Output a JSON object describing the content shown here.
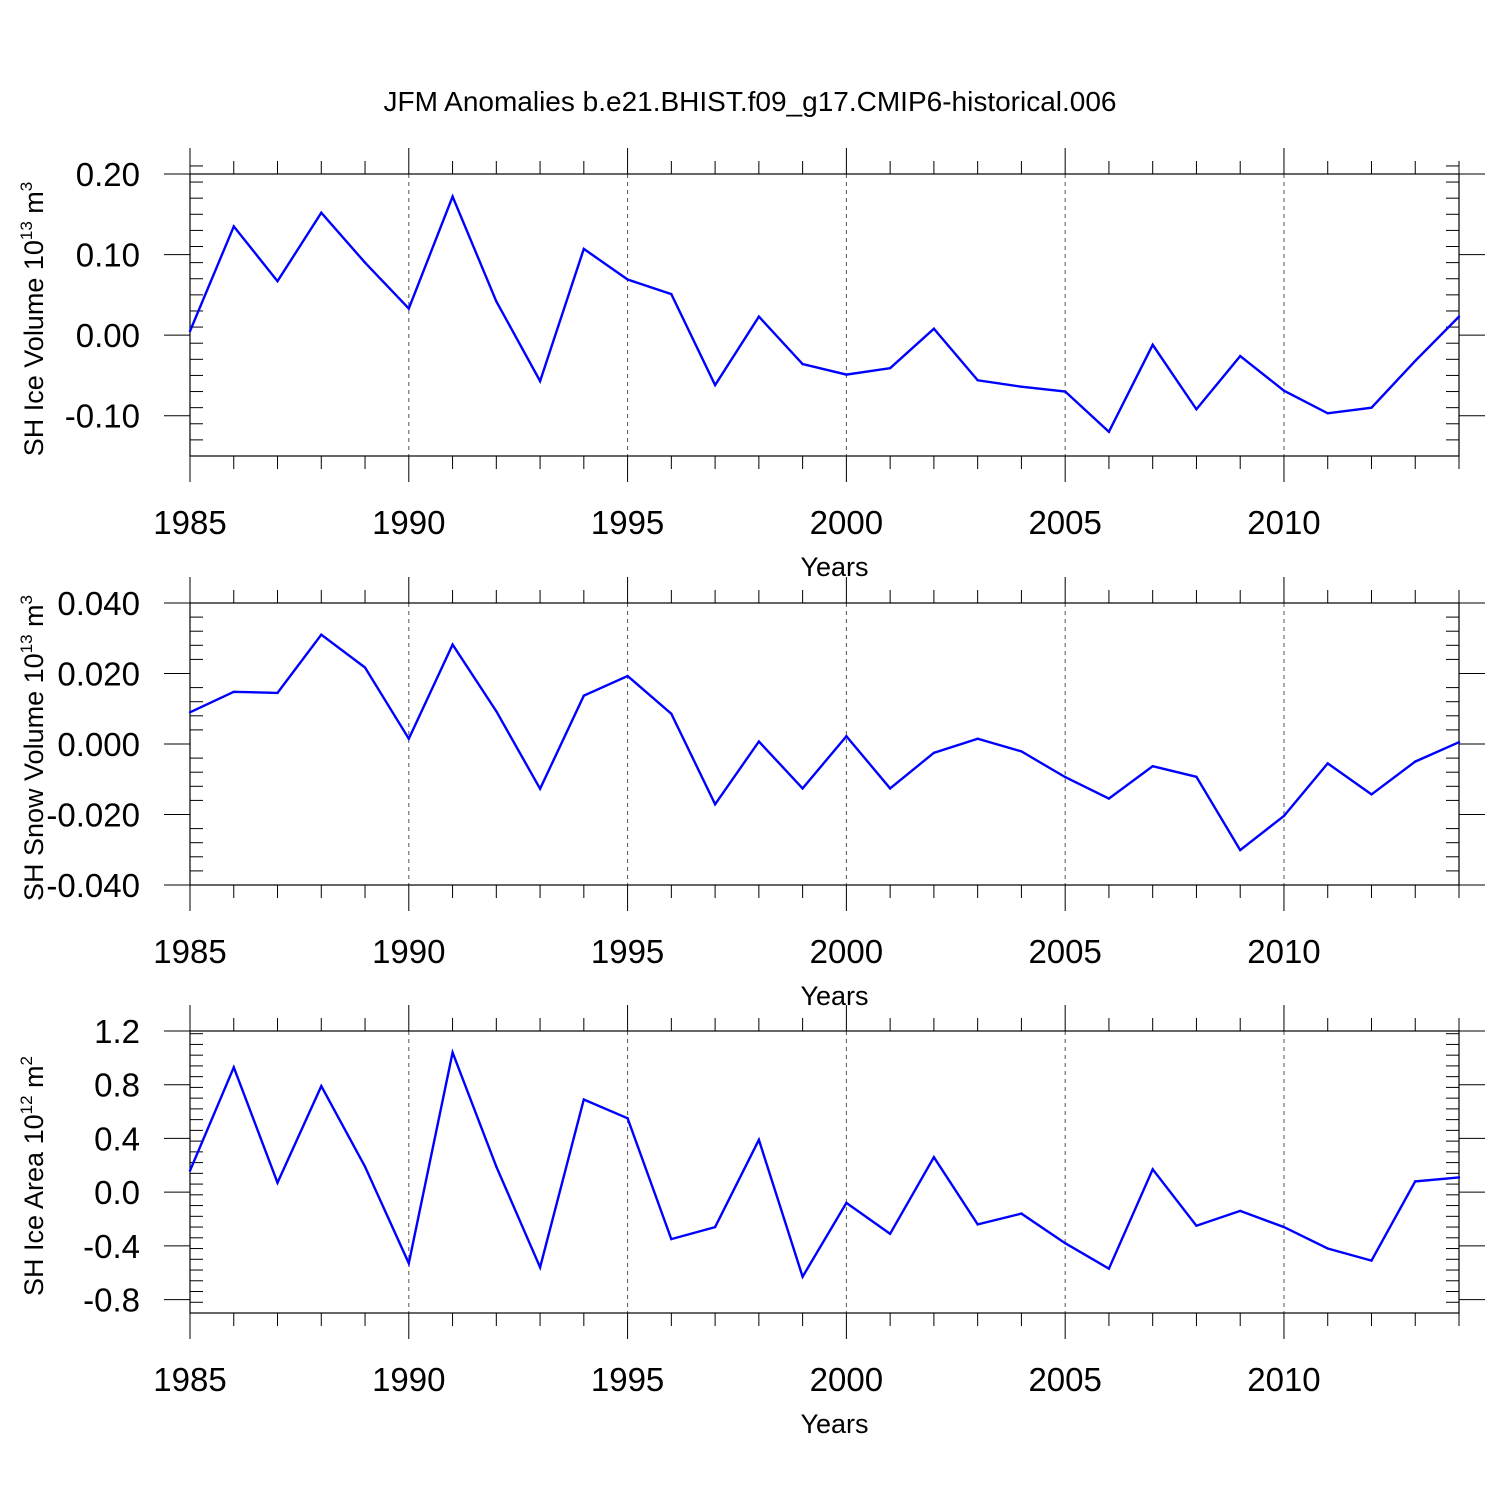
{
  "title": "JFM Anomalies b.e21.BHIST.f09_g17.CMIP6-historical.006",
  "line_color": "#0000ff",
  "chart_data": [
    {
      "type": "line",
      "xlabel": "Years",
      "ylabel": {
        "text": "SH Ice Volume 10",
        "exp": "13",
        "unit": " m",
        "unit_exp": "3"
      },
      "xlim": [
        1985,
        2014
      ],
      "ylim": [
        -0.15,
        0.2
      ],
      "x_ticks": [
        1985,
        1990,
        1995,
        2000,
        2005,
        2010
      ],
      "y_ticks": [
        0.2,
        0.1,
        0.0,
        -0.1
      ],
      "y_tick_labels": [
        "0.20",
        "0.10",
        "0.00",
        "-0.10"
      ],
      "grid": "vertical dashed at major x ticks",
      "series": [
        {
          "x": [
            1985,
            1986,
            1987,
            1988,
            1989,
            1990,
            1991,
            1992,
            1993,
            1994,
            1995,
            1996,
            1997,
            1998,
            1999,
            2000,
            2001,
            2002,
            2003,
            2004,
            2005,
            2006,
            2007,
            2008,
            2009,
            2010,
            2011,
            2012,
            2013,
            2014
          ],
          "y": [
            0.005,
            0.135,
            0.067,
            0.152,
            0.09,
            0.033,
            0.172,
            0.042,
            -0.057,
            0.107,
            0.069,
            0.051,
            -0.062,
            0.023,
            -0.036,
            -0.049,
            -0.041,
            0.008,
            -0.056,
            -0.064,
            -0.07,
            -0.12,
            -0.012,
            -0.092,
            -0.026,
            -0.069,
            -0.097,
            -0.09,
            -0.032,
            0.023
          ]
        }
      ]
    },
    {
      "type": "line",
      "xlabel": "Years",
      "ylabel": {
        "text": "SH Snow Volume 10",
        "exp": "13",
        "unit": " m",
        "unit_exp": "3"
      },
      "xlim": [
        1985,
        2014
      ],
      "ylim": [
        -0.04,
        0.04
      ],
      "x_ticks": [
        1985,
        1990,
        1995,
        2000,
        2005,
        2010
      ],
      "y_ticks": [
        0.04,
        0.02,
        0.0,
        -0.02,
        -0.04
      ],
      "y_tick_labels": [
        "0.040",
        "0.020",
        "0.000",
        "-0.020",
        "-0.040"
      ],
      "grid": "vertical dashed at major x ticks",
      "series": [
        {
          "x": [
            1985,
            1986,
            1987,
            1988,
            1989,
            1990,
            1991,
            1992,
            1993,
            1994,
            1995,
            1996,
            1997,
            1998,
            1999,
            2000,
            2001,
            2002,
            2003,
            2004,
            2005,
            2006,
            2007,
            2008,
            2009,
            2010,
            2011,
            2012,
            2013,
            2014
          ],
          "y": [
            0.009,
            0.0148,
            0.0145,
            0.031,
            0.0217,
            0.0015,
            0.0282,
            0.0093,
            -0.0127,
            0.0137,
            0.0193,
            0.0086,
            -0.0171,
            0.0007,
            -0.0126,
            0.0022,
            -0.0126,
            -0.0025,
            0.0015,
            -0.0021,
            -0.0094,
            -0.0155,
            -0.0063,
            -0.0093,
            -0.0301,
            -0.0204,
            -0.0055,
            -0.0143,
            -0.005,
            0.0005
          ]
        }
      ]
    },
    {
      "type": "line",
      "xlabel": "Years",
      "ylabel": {
        "text": "SH Ice Area 10",
        "exp": "12",
        "unit": " m",
        "unit_exp": "2"
      },
      "xlim": [
        1985,
        2014
      ],
      "ylim": [
        -0.9,
        1.2
      ],
      "x_ticks": [
        1985,
        1990,
        1995,
        2000,
        2005,
        2010
      ],
      "y_ticks": [
        1.2,
        0.8,
        0.4,
        0.0,
        -0.4,
        -0.8
      ],
      "y_tick_labels": [
        "1.2",
        "0.8",
        "0.4",
        "0.0",
        "-0.4",
        "-0.8"
      ],
      "grid": "vertical dashed at major x ticks",
      "series": [
        {
          "x": [
            1985,
            1986,
            1987,
            1988,
            1989,
            1990,
            1991,
            1992,
            1993,
            1994,
            1995,
            1996,
            1997,
            1998,
            1999,
            2000,
            2001,
            2002,
            2003,
            2004,
            2005,
            2006,
            2007,
            2008,
            2009,
            2010,
            2011,
            2012,
            2013,
            2014
          ],
          "y": [
            0.16,
            0.93,
            0.07,
            0.79,
            0.19,
            -0.53,
            1.04,
            0.19,
            -0.56,
            0.69,
            0.55,
            -0.35,
            -0.26,
            0.39,
            -0.63,
            -0.08,
            -0.31,
            0.26,
            -0.24,
            -0.16,
            -0.38,
            -0.57,
            0.17,
            -0.25,
            -0.14,
            -0.26,
            -0.42,
            -0.51,
            0.08,
            0.11
          ]
        }
      ]
    }
  ]
}
